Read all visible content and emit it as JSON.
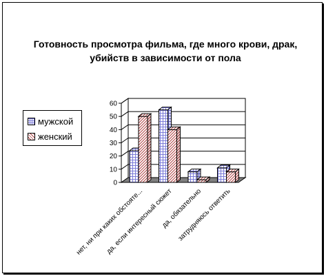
{
  "chart_data": {
    "type": "bar",
    "title": "Готовность просмотра фильма, где много крови, драк, убийств в зависимости от пола",
    "categories": [
      "нет, ни при каких обстояте...",
      "да, если интересный сюжет",
      "да, обязательно",
      "затрудняюсь ответить"
    ],
    "series": [
      {
        "name": "мужской",
        "values": [
          24,
          55,
          8,
          11
        ],
        "color": "#7a7ad8"
      },
      {
        "name": "женский",
        "values": [
          50,
          40,
          2,
          8
        ],
        "color": "#b04040"
      }
    ],
    "ylim": [
      0,
      60
    ],
    "yticks": [
      "0",
      "10",
      "20",
      "30",
      "40",
      "50",
      "60"
    ],
    "grid": true,
    "legend": "left"
  }
}
